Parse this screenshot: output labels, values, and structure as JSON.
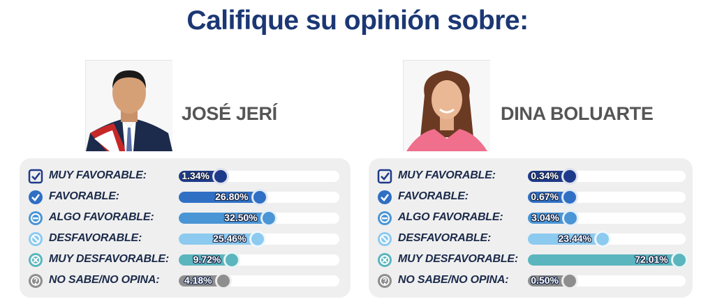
{
  "title": "Califique su opinión sobre:",
  "categories": [
    "MUY FAVORABLE:",
    "FAVORABLE:",
    "ALGO FAVORABLE:",
    "DESFAVORABLE:",
    "MUY DESFAVORABLE:",
    "NO SABE/NO OPINA:"
  ],
  "category_icons": [
    "check-square-icon",
    "check-circle-icon",
    "minus-circle-icon",
    "no-entry-circle-icon",
    "x-circle-icon",
    "question-circle-icon"
  ],
  "category_colors": [
    "#1e3a8a",
    "#2f6fc4",
    "#4a95d6",
    "#8ccaf0",
    "#5ab5be",
    "#8e8e8e"
  ],
  "people": [
    {
      "name": "JOSÉ JERÍ",
      "value_labels": [
        "1.34%",
        "26.80%",
        "32.50%",
        "25.46%",
        "9.72%",
        "4.18%"
      ]
    },
    {
      "name": "DINA BOLUARTE",
      "value_labels": [
        "0.34%",
        "0.67%",
        "3.04%",
        "23.44%",
        "72.01%",
        "0.50%"
      ]
    }
  ],
  "chart_data": [
    {
      "type": "bar",
      "title": "JOSÉ JERÍ",
      "categories": [
        "MUY FAVORABLE",
        "FAVORABLE",
        "ALGO FAVORABLE",
        "DESFAVORABLE",
        "MUY DESFAVORABLE",
        "NO SABE/NO OPINA"
      ],
      "values": [
        1.34,
        26.8,
        32.5,
        25.46,
        9.72,
        4.18
      ],
      "unit": "%",
      "ylim": [
        0,
        100
      ]
    },
    {
      "type": "bar",
      "title": "DINA BOLUARTE",
      "categories": [
        "MUY FAVORABLE",
        "FAVORABLE",
        "ALGO FAVORABLE",
        "DESFAVORABLE",
        "MUY DESFAVORABLE",
        "NO SABE/NO OPINA"
      ],
      "values": [
        0.34,
        0.67,
        3.04,
        23.44,
        72.01,
        0.5
      ],
      "unit": "%",
      "ylim": [
        0,
        100
      ]
    }
  ]
}
